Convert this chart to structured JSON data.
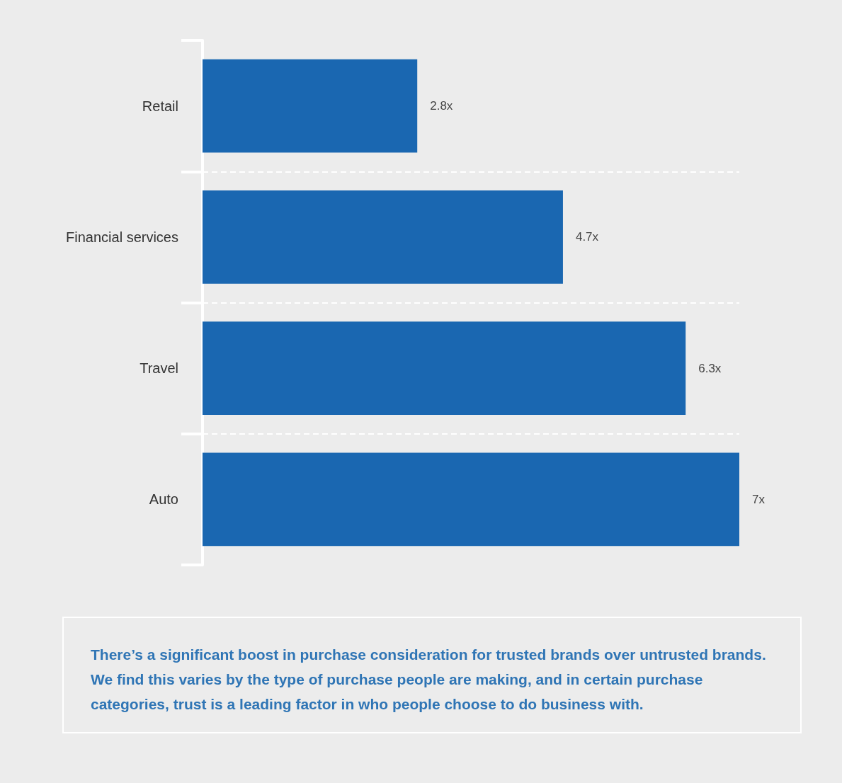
{
  "chart_data": {
    "type": "bar",
    "orientation": "horizontal",
    "categories": [
      "Retail",
      "Financial services",
      "Travel",
      "Auto"
    ],
    "values": [
      2.8,
      4.7,
      6.3,
      7
    ],
    "value_labels": [
      "2.8x",
      "4.7x",
      "6.3x",
      "7x"
    ],
    "color": "#1a67b1",
    "grid": "y",
    "annotations": [
      "There’s a significant boost in purchase consideration for trusted brands over untrusted brands. We find this varies by the type of purchase people are making, and in certain purchase categories, trust is a leading factor in who people choose to do business with."
    ]
  }
}
